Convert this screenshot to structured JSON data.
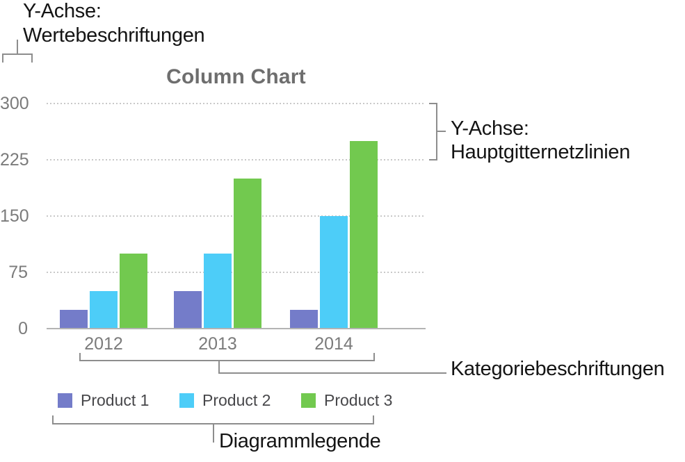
{
  "annotations": {
    "value_labels": {
      "line1": "Y-Achse:",
      "line2": "Wertebeschriftungen"
    },
    "major_gridlines": {
      "line1": "Y-Achse:",
      "line2": "Hauptgitternetzlinien"
    },
    "category_labels": {
      "label": "Kategoriebeschriftungen"
    },
    "chart_legend": {
      "label": "Diagrammlegende"
    }
  },
  "chart_data": {
    "type": "bar",
    "title": "Column Chart",
    "categories": [
      "2012",
      "2013",
      "2014"
    ],
    "series": [
      {
        "name": "Product 1",
        "color": "#747CC9",
        "values": [
          25,
          50,
          25
        ]
      },
      {
        "name": "Product 2",
        "color": "#4DCDF8",
        "values": [
          50,
          100,
          150
        ]
      },
      {
        "name": "Product 3",
        "color": "#72C94F",
        "values": [
          100,
          200,
          250
        ]
      }
    ],
    "xlabel": "",
    "ylabel": "",
    "y_ticks": [
      0,
      75,
      150,
      225,
      300
    ],
    "ylim": [
      0,
      300
    ],
    "grid": "horizontal-dotted",
    "legend_position": "bottom"
  }
}
